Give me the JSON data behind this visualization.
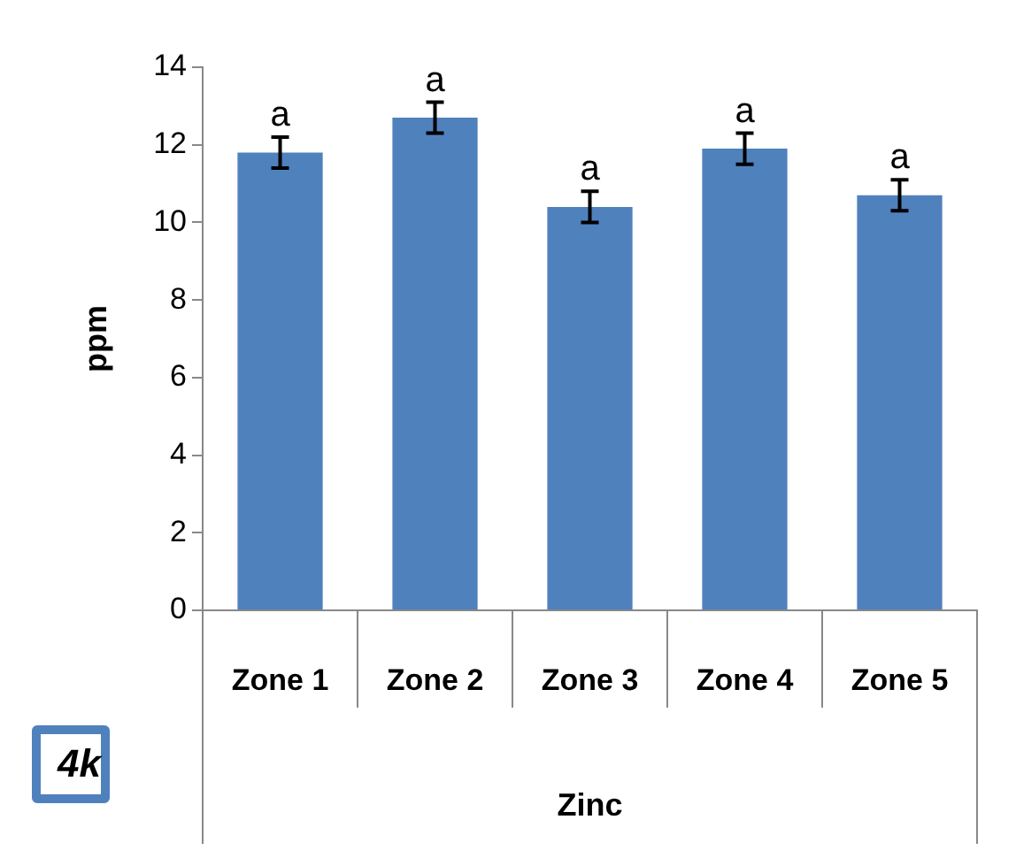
{
  "chart_data": {
    "type": "bar",
    "xlabel": "Zinc",
    "ylabel": "ppm",
    "categories": [
      "Zone 1",
      "Zone 2",
      "Zone 3",
      "Zone 4",
      "Zone 5"
    ],
    "values": [
      11.8,
      12.7,
      10.4,
      11.9,
      10.7
    ],
    "errors": [
      0.4,
      0.4,
      0.4,
      0.4,
      0.4
    ],
    "color": "#4f81bd",
    "ylim": [
      0,
      14
    ],
    "yticks": [
      0,
      2,
      4,
      6,
      8,
      10,
      12,
      14
    ],
    "grid": false,
    "legend": false,
    "annotations": [
      {
        "text": "a",
        "x": "Zone 1",
        "y": 12.2
      },
      {
        "text": "a",
        "x": "Zone 2",
        "y": 13.1
      },
      {
        "text": "a",
        "x": "Zone 3",
        "y": 10.8
      },
      {
        "text": "a",
        "x": "Zone 4",
        "y": 12.3
      },
      {
        "text": "a",
        "x": "Zone 5",
        "y": 11.1
      },
      "4k"
    ]
  }
}
